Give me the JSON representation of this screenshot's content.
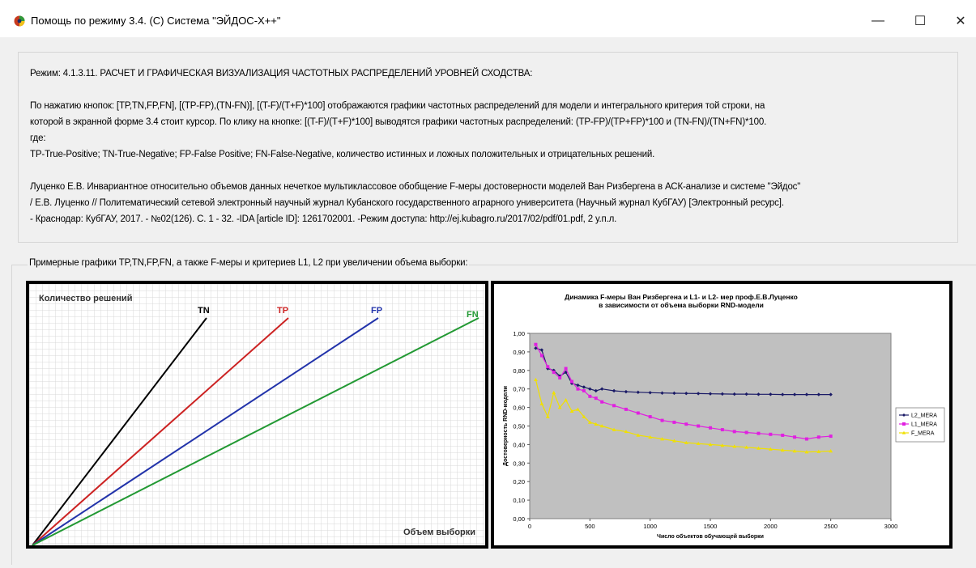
{
  "window": {
    "title": "Помощь по режиму 3.4. (С) Система \"ЭЙДОС-Х++\"",
    "controls": {
      "minimize": "—",
      "maximize": "☐",
      "close": "✕"
    }
  },
  "info": {
    "lines": [
      "Режим: 4.1.3.11. РАСЧЕТ И ГРАФИЧЕСКАЯ ВИЗУАЛИЗАЦИЯ ЧАСТОТНЫХ РАСПРЕДЕЛЕНИЙ УРОВНЕЙ СХОДСТВА:",
      "",
      "По нажатию кнопок: [TP,TN,FP,FN], [(TP-FP),(TN-FN)], [(T-F)/(T+F)*100] отображаются графики частотных распределений для модели и интегрального критерия той строки, на",
      "которой в экранной форме 3.4 стоит курсор. По клику на кнопке: [(T-F)/(T+F)*100] выводятся графики частотных распределений: (TP-FP)/(TP+FP)*100 и (TN-FN)/(TN+FN)*100.",
      "где:",
      "TP-True-Positive; TN-True-Negative; FP-False Positive; FN-False-Negative, количество истинных и ложных положительных и отрицательных решений.",
      "",
      "Луценко Е.В. Инвариантное относительно объемов данных нечеткое мультиклассовое обобщение F-меры достоверности моделей Ван Ризбергена в АСК-анализе и системе \"Эйдос\"",
      "/ Е.В. Луценко // Политематический сетевой электронный научный журнал Кубанского государственного аграрного университета (Научный журнал КубГАУ) [Электронный ресурс].",
      "- Краснодар: КубГАУ, 2017. - №02(126). С. 1 - 32. -IDA [article ID]: 1261702001. -Режим доступа: http://ej.kubagro.ru/2017/02/pdf/01.pdf, 2 у.п.л."
    ]
  },
  "examples": {
    "legend": "Примерные графики TP,TN,FP,FN, а также F-меры и критериев L1, L2 при увеличении объема выборки:"
  },
  "chart_data": [
    {
      "type": "line",
      "title": "",
      "ylabel": "Количество решений",
      "xlabel": "Объем выборки",
      "grid": true,
      "series": [
        {
          "name": "TN",
          "color": "#000000",
          "slope": 1.85
        },
        {
          "name": "TP",
          "color": "#cc2222",
          "slope": 1.08
        },
        {
          "name": "FP",
          "color": "#2233aa",
          "slope": 0.66
        },
        {
          "name": "FN",
          "color": "#229933",
          "slope": 0.52
        }
      ]
    },
    {
      "type": "line",
      "title": "Динамика F-меры Ван Ризбергена и L1- и L2- мер  проф.Е.В.Луценко",
      "subtitle": "в зависимости от объема выборки RND-модели",
      "xlabel": "Число объектов обучающей выборки",
      "ylabel": "Достоверность RND-модели",
      "xlim": [
        0,
        3000
      ],
      "ylim": [
        0,
        1
      ],
      "xticks": [
        "0",
        "500",
        "1000",
        "1500",
        "2000",
        "2500",
        "3000"
      ],
      "yticks": [
        "0,00",
        "0,10",
        "0,20",
        "0,30",
        "0,40",
        "0,50",
        "0,60",
        "0,70",
        "0,80",
        "0,90",
        "1,00"
      ],
      "legend_position": "right",
      "grid": false,
      "series": [
        {
          "name": "L2_MERA",
          "color": "#1a1a66",
          "points": [
            [
              50,
              0.92
            ],
            [
              100,
              0.91
            ],
            [
              150,
              0.81
            ],
            [
              200,
              0.8
            ],
            [
              250,
              0.77
            ],
            [
              300,
              0.79
            ],
            [
              350,
              0.73
            ],
            [
              400,
              0.72
            ],
            [
              450,
              0.71
            ],
            [
              500,
              0.7
            ],
            [
              550,
              0.69
            ],
            [
              600,
              0.7
            ],
            [
              700,
              0.69
            ],
            [
              800,
              0.685
            ],
            [
              900,
              0.682
            ],
            [
              1000,
              0.68
            ],
            [
              1100,
              0.678
            ],
            [
              1200,
              0.677
            ],
            [
              1300,
              0.676
            ],
            [
              1400,
              0.675
            ],
            [
              1500,
              0.674
            ],
            [
              1600,
              0.673
            ],
            [
              1700,
              0.672
            ],
            [
              1800,
              0.672
            ],
            [
              1900,
              0.671
            ],
            [
              2000,
              0.671
            ],
            [
              2100,
              0.67
            ],
            [
              2200,
              0.67
            ],
            [
              2300,
              0.67
            ],
            [
              2400,
              0.67
            ],
            [
              2500,
              0.67
            ]
          ]
        },
        {
          "name": "L1_MERA",
          "color": "#e020e0",
          "points": [
            [
              50,
              0.94
            ],
            [
              100,
              0.88
            ],
            [
              150,
              0.82
            ],
            [
              200,
              0.79
            ],
            [
              250,
              0.76
            ],
            [
              300,
              0.81
            ],
            [
              350,
              0.74
            ],
            [
              400,
              0.7
            ],
            [
              450,
              0.69
            ],
            [
              500,
              0.66
            ],
            [
              550,
              0.65
            ],
            [
              600,
              0.63
            ],
            [
              700,
              0.61
            ],
            [
              800,
              0.59
            ],
            [
              900,
              0.57
            ],
            [
              1000,
              0.55
            ],
            [
              1100,
              0.53
            ],
            [
              1200,
              0.52
            ],
            [
              1300,
              0.51
            ],
            [
              1400,
              0.5
            ],
            [
              1500,
              0.49
            ],
            [
              1600,
              0.48
            ],
            [
              1700,
              0.47
            ],
            [
              1800,
              0.465
            ],
            [
              1900,
              0.46
            ],
            [
              2000,
              0.455
            ],
            [
              2100,
              0.45
            ],
            [
              2200,
              0.44
            ],
            [
              2300,
              0.43
            ],
            [
              2400,
              0.44
            ],
            [
              2500,
              0.445
            ]
          ]
        },
        {
          "name": "F_MERA",
          "color": "#f0e000",
          "points": [
            [
              50,
              0.75
            ],
            [
              100,
              0.62
            ],
            [
              150,
              0.55
            ],
            [
              200,
              0.68
            ],
            [
              250,
              0.6
            ],
            [
              300,
              0.64
            ],
            [
              350,
              0.58
            ],
            [
              400,
              0.59
            ],
            [
              450,
              0.55
            ],
            [
              500,
              0.52
            ],
            [
              550,
              0.51
            ],
            [
              600,
              0.5
            ],
            [
              700,
              0.48
            ],
            [
              800,
              0.47
            ],
            [
              900,
              0.45
            ],
            [
              1000,
              0.44
            ],
            [
              1100,
              0.43
            ],
            [
              1200,
              0.42
            ],
            [
              1300,
              0.41
            ],
            [
              1400,
              0.405
            ],
            [
              1500,
              0.4
            ],
            [
              1600,
              0.395
            ],
            [
              1700,
              0.39
            ],
            [
              1800,
              0.385
            ],
            [
              1900,
              0.38
            ],
            [
              2000,
              0.375
            ],
            [
              2100,
              0.37
            ],
            [
              2200,
              0.365
            ],
            [
              2300,
              0.36
            ],
            [
              2400,
              0.362
            ],
            [
              2500,
              0.365
            ]
          ]
        }
      ]
    }
  ]
}
